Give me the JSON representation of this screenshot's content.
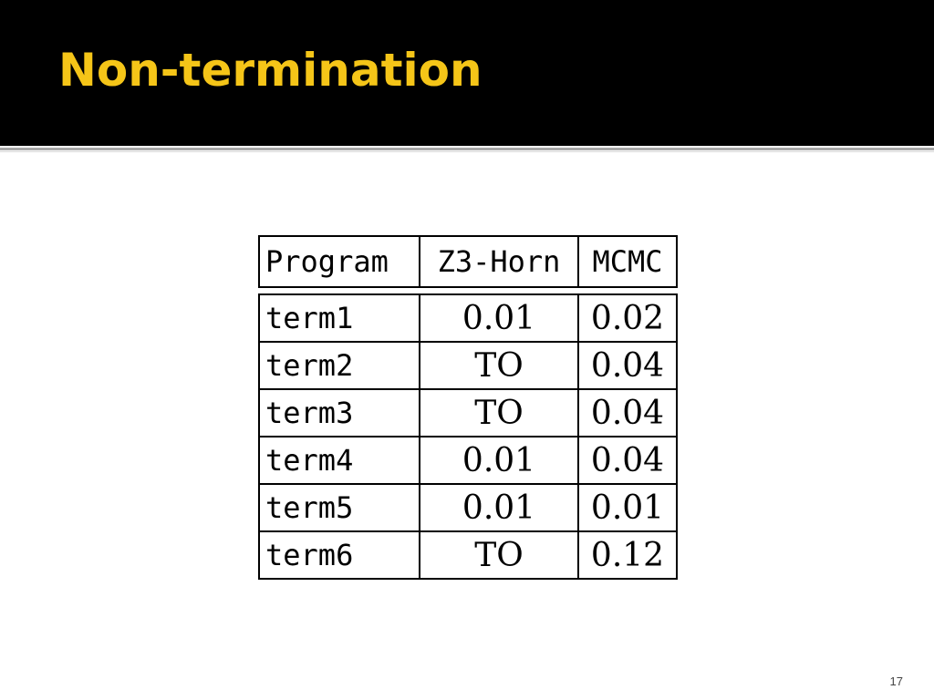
{
  "slide": {
    "title": "Non-termination",
    "page_number": "17",
    "title_color": "#f5c518",
    "title_bar_color": "#000000"
  },
  "table": {
    "headers": [
      "Program",
      "Z3-Horn",
      "MCMC"
    ],
    "rows": [
      [
        "term1",
        "0.01",
        "0.02"
      ],
      [
        "term2",
        "TO",
        "0.04"
      ],
      [
        "term3",
        "TO",
        "0.04"
      ],
      [
        "term4",
        "0.01",
        "0.04"
      ],
      [
        "term5",
        "0.01",
        "0.01"
      ],
      [
        "term6",
        "TO",
        "0.12"
      ]
    ]
  }
}
